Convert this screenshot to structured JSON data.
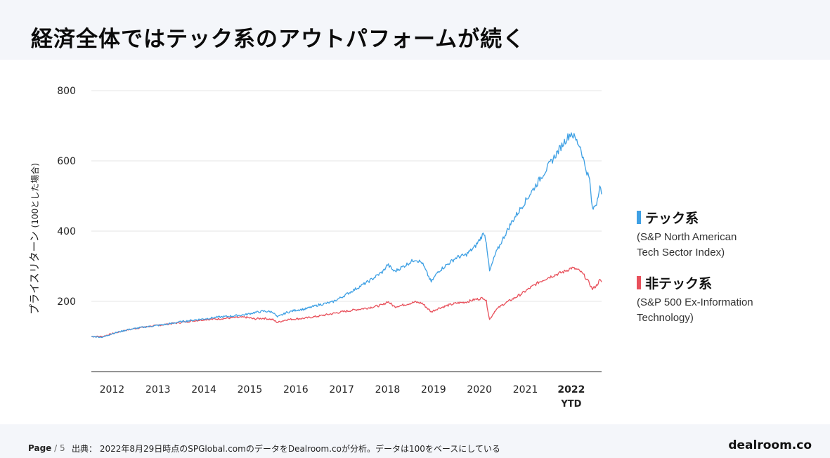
{
  "title": "経済全体ではテック系のアウトパフォームが続く",
  "chart_data": {
    "type": "line",
    "ylabel": "プライスリターン",
    "ylabel_note": "(100とした場合)",
    "ylim": [
      0,
      800
    ],
    "yticks": [
      200,
      400,
      600,
      800
    ],
    "xlim": [
      2011.55,
      2022.66
    ],
    "x_tick_labels": [
      {
        "label": "2012",
        "x": 2012.0
      },
      {
        "label": "2013",
        "x": 2013.0
      },
      {
        "label": "2014",
        "x": 2014.0
      },
      {
        "label": "2015",
        "x": 2015.0
      },
      {
        "label": "2016",
        "x": 2016.0
      },
      {
        "label": "2017",
        "x": 2017.0
      },
      {
        "label": "2018",
        "x": 2018.0
      },
      {
        "label": "2019",
        "x": 2019.0
      },
      {
        "label": "2020",
        "x": 2020.0
      },
      {
        "label": "2021",
        "x": 2021.0
      },
      {
        "label": "2022",
        "sublabel": "YTD",
        "x": 2022.0,
        "bold": true
      }
    ],
    "series": [
      {
        "name": "テック系",
        "description": "(S&P North American Tech Sector Index)",
        "color": "#3ea0e4",
        "points": [
          [
            2011.55,
            100
          ],
          [
            2011.8,
            98
          ],
          [
            2012.0,
            108
          ],
          [
            2012.3,
            118
          ],
          [
            2012.6,
            125
          ],
          [
            2012.9,
            130
          ],
          [
            2013.2,
            135
          ],
          [
            2013.5,
            142
          ],
          [
            2013.8,
            147
          ],
          [
            2014.0,
            150
          ],
          [
            2014.3,
            155
          ],
          [
            2014.6,
            158
          ],
          [
            2014.9,
            162
          ],
          [
            2015.1,
            168
          ],
          [
            2015.3,
            172
          ],
          [
            2015.5,
            170
          ],
          [
            2015.6,
            155
          ],
          [
            2015.8,
            168
          ],
          [
            2016.0,
            175
          ],
          [
            2016.2,
            178
          ],
          [
            2016.5,
            190
          ],
          [
            2016.8,
            198
          ],
          [
            2017.0,
            212
          ],
          [
            2017.3,
            235
          ],
          [
            2017.6,
            258
          ],
          [
            2017.9,
            285
          ],
          [
            2018.0,
            305
          ],
          [
            2018.15,
            285
          ],
          [
            2018.35,
            300
          ],
          [
            2018.6,
            320
          ],
          [
            2018.75,
            310
          ],
          [
            2018.95,
            255
          ],
          [
            2019.1,
            285
          ],
          [
            2019.3,
            305
          ],
          [
            2019.5,
            325
          ],
          [
            2019.7,
            332
          ],
          [
            2019.9,
            355
          ],
          [
            2020.1,
            395
          ],
          [
            2020.15,
            370
          ],
          [
            2020.22,
            285
          ],
          [
            2020.35,
            335
          ],
          [
            2020.5,
            375
          ],
          [
            2020.7,
            425
          ],
          [
            2020.9,
            465
          ],
          [
            2021.1,
            505
          ],
          [
            2021.3,
            545
          ],
          [
            2021.5,
            585
          ],
          [
            2021.7,
            625
          ],
          [
            2021.85,
            655
          ],
          [
            2022.0,
            680
          ],
          [
            2022.1,
            660
          ],
          [
            2022.2,
            640
          ],
          [
            2022.3,
            585
          ],
          [
            2022.4,
            545
          ],
          [
            2022.46,
            460
          ],
          [
            2022.55,
            480
          ],
          [
            2022.62,
            530
          ],
          [
            2022.66,
            505
          ]
        ]
      },
      {
        "name": "非テック系",
        "description": "(S&P 500 Ex-Information Technology)",
        "color": "#e8505b",
        "points": [
          [
            2011.55,
            100
          ],
          [
            2011.8,
            100
          ],
          [
            2012.0,
            108
          ],
          [
            2012.3,
            118
          ],
          [
            2012.6,
            125
          ],
          [
            2012.9,
            130
          ],
          [
            2013.2,
            135
          ],
          [
            2013.5,
            140
          ],
          [
            2013.8,
            145
          ],
          [
            2014.0,
            148
          ],
          [
            2014.3,
            150
          ],
          [
            2014.6,
            153
          ],
          [
            2014.9,
            155
          ],
          [
            2015.1,
            150
          ],
          [
            2015.3,
            152
          ],
          [
            2015.5,
            148
          ],
          [
            2015.6,
            140
          ],
          [
            2015.8,
            148
          ],
          [
            2016.0,
            150
          ],
          [
            2016.2,
            152
          ],
          [
            2016.5,
            158
          ],
          [
            2016.8,
            165
          ],
          [
            2017.0,
            170
          ],
          [
            2017.3,
            176
          ],
          [
            2017.6,
            182
          ],
          [
            2017.9,
            190
          ],
          [
            2018.0,
            200
          ],
          [
            2018.15,
            185
          ],
          [
            2018.35,
            190
          ],
          [
            2018.6,
            198
          ],
          [
            2018.75,
            195
          ],
          [
            2018.95,
            170
          ],
          [
            2019.1,
            180
          ],
          [
            2019.3,
            188
          ],
          [
            2019.5,
            195
          ],
          [
            2019.7,
            198
          ],
          [
            2019.9,
            205
          ],
          [
            2020.1,
            210
          ],
          [
            2020.15,
            200
          ],
          [
            2020.22,
            148
          ],
          [
            2020.35,
            175
          ],
          [
            2020.5,
            190
          ],
          [
            2020.7,
            205
          ],
          [
            2020.9,
            220
          ],
          [
            2021.1,
            238
          ],
          [
            2021.3,
            255
          ],
          [
            2021.5,
            268
          ],
          [
            2021.7,
            278
          ],
          [
            2021.85,
            285
          ],
          [
            2022.0,
            295
          ],
          [
            2022.1,
            292
          ],
          [
            2022.2,
            285
          ],
          [
            2022.3,
            270
          ],
          [
            2022.4,
            250
          ],
          [
            2022.46,
            235
          ],
          [
            2022.55,
            245
          ],
          [
            2022.62,
            260
          ],
          [
            2022.66,
            255
          ]
        ]
      }
    ]
  },
  "legend": [
    {
      "name": "テック系",
      "line1": "(S&P North American",
      "line2": "Tech Sector Index)",
      "color": "#3ea0e4"
    },
    {
      "name": "非テック系",
      "line1": "(S&P 500 Ex-Information",
      "line2": "Technology)",
      "color": "#e8505b"
    }
  ],
  "footer": {
    "page_label": "Page",
    "page_number": "5",
    "source": "出典： 2022年8月29日時点のSPGlobal.comのデータをDealroom.coが分析。データは100をベースにしている",
    "brand": "dealroom.co"
  }
}
